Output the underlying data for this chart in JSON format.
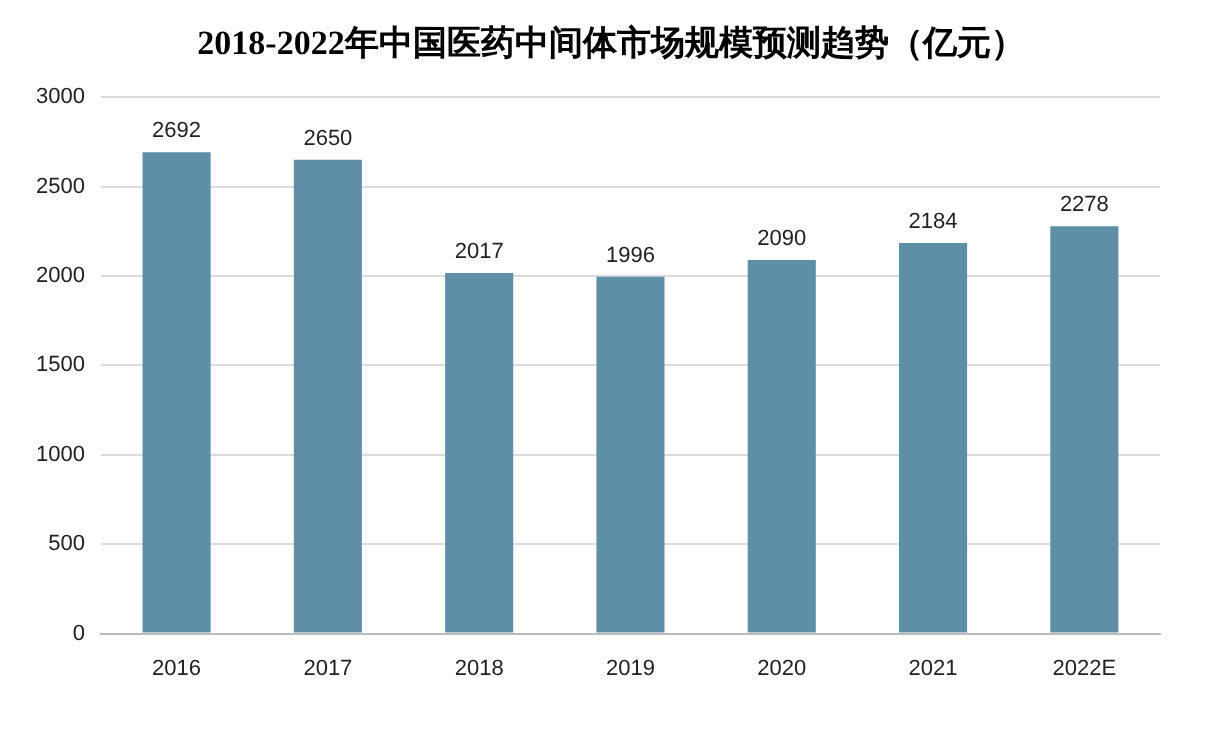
{
  "chart_data": {
    "type": "bar",
    "title": "2018-2022年中国医药中间体市场规模预测趋势（亿元）",
    "categories": [
      "2016",
      "2017",
      "2018",
      "2019",
      "2020",
      "2021",
      "2022E"
    ],
    "values": [
      2692,
      2650,
      2017,
      1996,
      2090,
      2184,
      2278
    ],
    "color": "#5e8fa6",
    "ylim": [
      0,
      3000
    ],
    "yticks": [
      0,
      500,
      1000,
      1500,
      2000,
      2500,
      3000
    ],
    "grid": "y",
    "data_labels": true
  }
}
